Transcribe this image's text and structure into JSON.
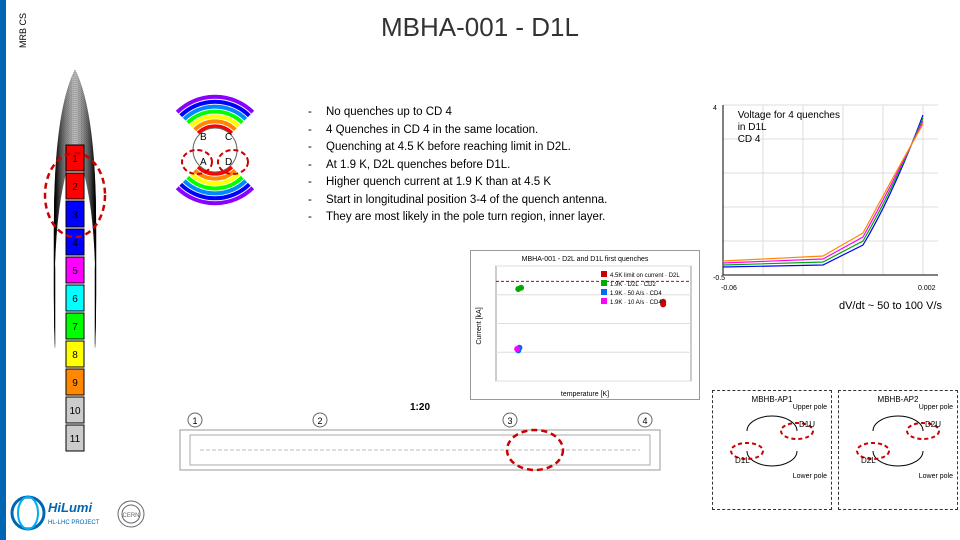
{
  "title": "MBHA-001 - D1L",
  "antenna": {
    "top_label1": "MRB",
    "top_label2": "CS",
    "segments": [
      "1",
      "2",
      "3",
      "4",
      "5",
      "6",
      "7",
      "8",
      "9",
      "10",
      "11"
    ],
    "segment_colors": [
      "#ff0000",
      "#ff0000",
      "#0000ff",
      "#0000ff",
      "#ff00ff",
      "#00ffff",
      "#00ff00",
      "#ffff00",
      "#ff8800",
      "#cccccc",
      "#cccccc"
    ]
  },
  "coil_cross": {
    "quadrants": [
      "B",
      "C",
      "A",
      "D"
    ],
    "rainbow_colors": [
      "#ff0000",
      "#ff8800",
      "#ffff00",
      "#00ff00",
      "#0088ff",
      "#0000ff",
      "#8800ff"
    ]
  },
  "bullets": [
    "No quenches up to CD 4",
    "4 Quenches in CD 4 in the same location.",
    "Quenching at 4.5 K before reaching limit in D2L.",
    "At 1.9 K, D2L quenches before D1L.",
    "Higher quench current at 1.9 K than at 4.5 K",
    "Start in longitudinal position 3-4 of the quench antenna.",
    "They are most likely in the pole turn region, inner layer."
  ],
  "voltage_plot": {
    "note_line1": "Voltage for 4 quenches",
    "note_line2": "in D1L",
    "note_line3": "CD 4",
    "xlim": [
      -0.06,
      0.002
    ],
    "ylim": [
      -0.5,
      4
    ],
    "line_colors": [
      "#0000ff",
      "#00aa00",
      "#ff00ff",
      "#ff8800"
    ],
    "dvdt_text": "dV/dt ~ 50 to 100 V/s",
    "background": "#ffffff",
    "grid_color": "#dddddd"
  },
  "scatter_plot": {
    "title": "MBHA-001 - D2L and D1L first quenches",
    "xlabel": "temperature [K]",
    "ylabel": "Current [kA]",
    "xlim": [
      1.5,
      5
    ],
    "ylim": [
      9,
      13.5
    ],
    "legend": [
      "4.5K limit on current · D2L",
      "1.9K · D2L · CD2",
      "1.9K · 50 A/s · CD4",
      "1.9K · 10 A/s · CD4"
    ],
    "series_colors": [
      "#cc0000",
      "#00aa00",
      "#0066ff",
      "#ff00ff"
    ],
    "points": {
      "s1": [
        [
          4.5,
          12.1
        ],
        [
          4.5,
          12.0
        ]
      ],
      "s2": [
        [
          1.9,
          12.6
        ],
        [
          1.95,
          12.65
        ]
      ],
      "s3": [
        [
          1.9,
          10.2
        ],
        [
          1.92,
          10.3
        ]
      ],
      "s4": [
        [
          1.88,
          10.25
        ]
      ]
    },
    "dashed_line_y": 12.9,
    "grid_color": "#cccccc"
  },
  "tech_drawing": {
    "scale_label": "1:20",
    "callouts": [
      "1",
      "2",
      "3",
      "4"
    ]
  },
  "pole_diagrams": {
    "left": {
      "title": "MBHB-AP1",
      "upper": "Upper pole",
      "d1u": "D1U",
      "d1l": "D1L",
      "lower": "Lower pole"
    },
    "right": {
      "title": "MBHB-AP2",
      "upper": "Upper pole",
      "d2u": "D2U",
      "d2l": "D2L",
      "lower": "Lower pole"
    }
  },
  "logos": {
    "hilumi_top": "HiLumi",
    "hilumi_sub": "HL-LHC PROJECT",
    "hilumi_colors": [
      "#0066b3",
      "#00aeef"
    ],
    "cern": "CERN"
  }
}
